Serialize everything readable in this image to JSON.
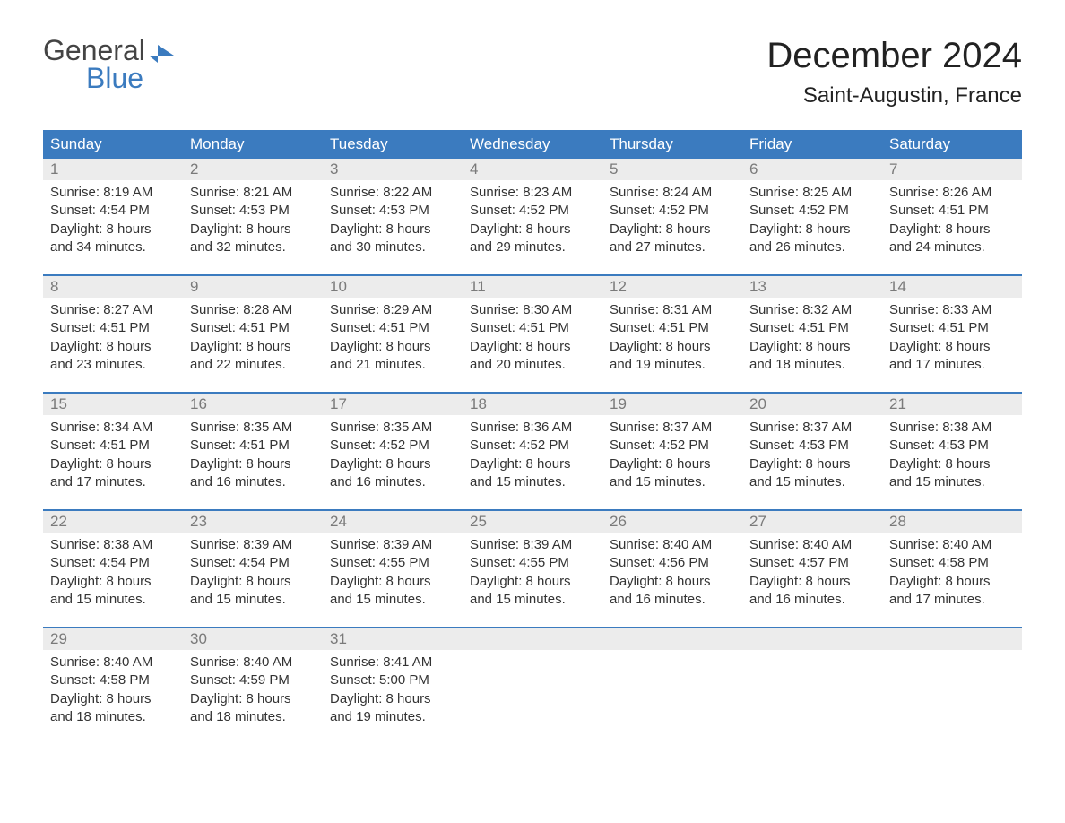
{
  "logo": {
    "text_top": "General",
    "text_bottom": "Blue",
    "brand_color": "#3b7bbf"
  },
  "title": {
    "month": "December 2024",
    "location": "Saint-Augustin, France"
  },
  "colors": {
    "header_bg": "#3b7bbf",
    "header_text": "#ffffff",
    "daynum_bg": "#ececec",
    "daynum_text": "#7a7a7a",
    "body_text": "#333333",
    "divider": "#3b7bbf",
    "background": "#ffffff"
  },
  "typography": {
    "title_fontsize": 40,
    "location_fontsize": 24,
    "dayheader_fontsize": 17,
    "daynum_fontsize": 17,
    "content_fontsize": 15,
    "font_family": "Arial, Helvetica, sans-serif"
  },
  "day_headers": [
    "Sunday",
    "Monday",
    "Tuesday",
    "Wednesday",
    "Thursday",
    "Friday",
    "Saturday"
  ],
  "weeks": [
    [
      {
        "num": "1",
        "sunrise": "Sunrise: 8:19 AM",
        "sunset": "Sunset: 4:54 PM",
        "daylight1": "Daylight: 8 hours",
        "daylight2": "and 34 minutes."
      },
      {
        "num": "2",
        "sunrise": "Sunrise: 8:21 AM",
        "sunset": "Sunset: 4:53 PM",
        "daylight1": "Daylight: 8 hours",
        "daylight2": "and 32 minutes."
      },
      {
        "num": "3",
        "sunrise": "Sunrise: 8:22 AM",
        "sunset": "Sunset: 4:53 PM",
        "daylight1": "Daylight: 8 hours",
        "daylight2": "and 30 minutes."
      },
      {
        "num": "4",
        "sunrise": "Sunrise: 8:23 AM",
        "sunset": "Sunset: 4:52 PM",
        "daylight1": "Daylight: 8 hours",
        "daylight2": "and 29 minutes."
      },
      {
        "num": "5",
        "sunrise": "Sunrise: 8:24 AM",
        "sunset": "Sunset: 4:52 PM",
        "daylight1": "Daylight: 8 hours",
        "daylight2": "and 27 minutes."
      },
      {
        "num": "6",
        "sunrise": "Sunrise: 8:25 AM",
        "sunset": "Sunset: 4:52 PM",
        "daylight1": "Daylight: 8 hours",
        "daylight2": "and 26 minutes."
      },
      {
        "num": "7",
        "sunrise": "Sunrise: 8:26 AM",
        "sunset": "Sunset: 4:51 PM",
        "daylight1": "Daylight: 8 hours",
        "daylight2": "and 24 minutes."
      }
    ],
    [
      {
        "num": "8",
        "sunrise": "Sunrise: 8:27 AM",
        "sunset": "Sunset: 4:51 PM",
        "daylight1": "Daylight: 8 hours",
        "daylight2": "and 23 minutes."
      },
      {
        "num": "9",
        "sunrise": "Sunrise: 8:28 AM",
        "sunset": "Sunset: 4:51 PM",
        "daylight1": "Daylight: 8 hours",
        "daylight2": "and 22 minutes."
      },
      {
        "num": "10",
        "sunrise": "Sunrise: 8:29 AM",
        "sunset": "Sunset: 4:51 PM",
        "daylight1": "Daylight: 8 hours",
        "daylight2": "and 21 minutes."
      },
      {
        "num": "11",
        "sunrise": "Sunrise: 8:30 AM",
        "sunset": "Sunset: 4:51 PM",
        "daylight1": "Daylight: 8 hours",
        "daylight2": "and 20 minutes."
      },
      {
        "num": "12",
        "sunrise": "Sunrise: 8:31 AM",
        "sunset": "Sunset: 4:51 PM",
        "daylight1": "Daylight: 8 hours",
        "daylight2": "and 19 minutes."
      },
      {
        "num": "13",
        "sunrise": "Sunrise: 8:32 AM",
        "sunset": "Sunset: 4:51 PM",
        "daylight1": "Daylight: 8 hours",
        "daylight2": "and 18 minutes."
      },
      {
        "num": "14",
        "sunrise": "Sunrise: 8:33 AM",
        "sunset": "Sunset: 4:51 PM",
        "daylight1": "Daylight: 8 hours",
        "daylight2": "and 17 minutes."
      }
    ],
    [
      {
        "num": "15",
        "sunrise": "Sunrise: 8:34 AM",
        "sunset": "Sunset: 4:51 PM",
        "daylight1": "Daylight: 8 hours",
        "daylight2": "and 17 minutes."
      },
      {
        "num": "16",
        "sunrise": "Sunrise: 8:35 AM",
        "sunset": "Sunset: 4:51 PM",
        "daylight1": "Daylight: 8 hours",
        "daylight2": "and 16 minutes."
      },
      {
        "num": "17",
        "sunrise": "Sunrise: 8:35 AM",
        "sunset": "Sunset: 4:52 PM",
        "daylight1": "Daylight: 8 hours",
        "daylight2": "and 16 minutes."
      },
      {
        "num": "18",
        "sunrise": "Sunrise: 8:36 AM",
        "sunset": "Sunset: 4:52 PM",
        "daylight1": "Daylight: 8 hours",
        "daylight2": "and 15 minutes."
      },
      {
        "num": "19",
        "sunrise": "Sunrise: 8:37 AM",
        "sunset": "Sunset: 4:52 PM",
        "daylight1": "Daylight: 8 hours",
        "daylight2": "and 15 minutes."
      },
      {
        "num": "20",
        "sunrise": "Sunrise: 8:37 AM",
        "sunset": "Sunset: 4:53 PM",
        "daylight1": "Daylight: 8 hours",
        "daylight2": "and 15 minutes."
      },
      {
        "num": "21",
        "sunrise": "Sunrise: 8:38 AM",
        "sunset": "Sunset: 4:53 PM",
        "daylight1": "Daylight: 8 hours",
        "daylight2": "and 15 minutes."
      }
    ],
    [
      {
        "num": "22",
        "sunrise": "Sunrise: 8:38 AM",
        "sunset": "Sunset: 4:54 PM",
        "daylight1": "Daylight: 8 hours",
        "daylight2": "and 15 minutes."
      },
      {
        "num": "23",
        "sunrise": "Sunrise: 8:39 AM",
        "sunset": "Sunset: 4:54 PM",
        "daylight1": "Daylight: 8 hours",
        "daylight2": "and 15 minutes."
      },
      {
        "num": "24",
        "sunrise": "Sunrise: 8:39 AM",
        "sunset": "Sunset: 4:55 PM",
        "daylight1": "Daylight: 8 hours",
        "daylight2": "and 15 minutes."
      },
      {
        "num": "25",
        "sunrise": "Sunrise: 8:39 AM",
        "sunset": "Sunset: 4:55 PM",
        "daylight1": "Daylight: 8 hours",
        "daylight2": "and 15 minutes."
      },
      {
        "num": "26",
        "sunrise": "Sunrise: 8:40 AM",
        "sunset": "Sunset: 4:56 PM",
        "daylight1": "Daylight: 8 hours",
        "daylight2": "and 16 minutes."
      },
      {
        "num": "27",
        "sunrise": "Sunrise: 8:40 AM",
        "sunset": "Sunset: 4:57 PM",
        "daylight1": "Daylight: 8 hours",
        "daylight2": "and 16 minutes."
      },
      {
        "num": "28",
        "sunrise": "Sunrise: 8:40 AM",
        "sunset": "Sunset: 4:58 PM",
        "daylight1": "Daylight: 8 hours",
        "daylight2": "and 17 minutes."
      }
    ],
    [
      {
        "num": "29",
        "sunrise": "Sunrise: 8:40 AM",
        "sunset": "Sunset: 4:58 PM",
        "daylight1": "Daylight: 8 hours",
        "daylight2": "and 18 minutes."
      },
      {
        "num": "30",
        "sunrise": "Sunrise: 8:40 AM",
        "sunset": "Sunset: 4:59 PM",
        "daylight1": "Daylight: 8 hours",
        "daylight2": "and 18 minutes."
      },
      {
        "num": "31",
        "sunrise": "Sunrise: 8:41 AM",
        "sunset": "Sunset: 5:00 PM",
        "daylight1": "Daylight: 8 hours",
        "daylight2": "and 19 minutes."
      },
      null,
      null,
      null,
      null
    ]
  ]
}
